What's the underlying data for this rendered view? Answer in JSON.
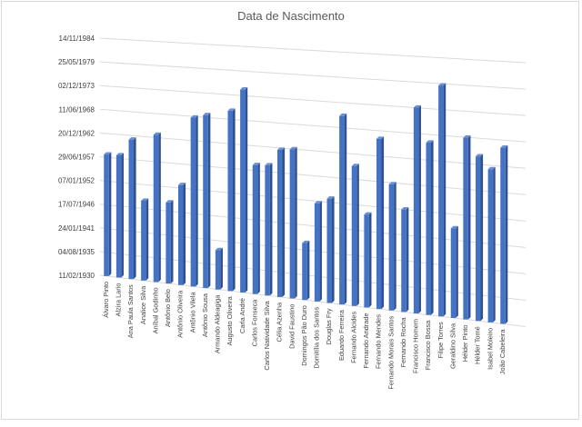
{
  "chart_data": {
    "type": "bar",
    "title": "Data de Nascimento",
    "xlabel": "",
    "ylabel": "",
    "y_tick_labels": [
      "11/02/1930",
      "04/08/1935",
      "24/01/1941",
      "17/07/1946",
      "07/01/1952",
      "29/06/1957",
      "20/12/1962",
      "11/06/1968",
      "02/12/1973",
      "25/05/1979",
      "14/11/1984"
    ],
    "ylim": [
      "11/02/1930",
      "14/11/1984"
    ],
    "grid": true,
    "legend": "none",
    "categories": [
      "Álvaro Pinto",
      "Alzira Lario",
      "Ana Paula Santos",
      "Analice Silva",
      "Aníbal Godinho",
      "Antônio Belo",
      "Antônio Oliveira",
      "Antônio Vilela",
      "Antônio Sousa",
      "Armando Aldeagiga",
      "Augusto Oliveira",
      "Carla André",
      "Carlos Fonseca",
      "Carlos Natividade Silva",
      "Célia Azenha",
      "David Faustino",
      "Domingos Pão Duro",
      "Domitília dos Santos",
      "Douglas Fry",
      "Eduardo Ferreira",
      "Fernando Alcides",
      "Fernando Andrade",
      "Fernando Mendes",
      "Fernando Morais Santos",
      "Fernando Rocha",
      "Francisco Homem",
      "Francisco Bossa",
      "Filipe Torres",
      "Geraldino Silva",
      "Hélder Pinto",
      "Hélder Tomé",
      "Isabel Moleiro",
      "João Cabeleira"
    ],
    "values": [
      "20/02/1958",
      "15/03/1958",
      "10/01/1962",
      "30/04/1948",
      "13/08/1963",
      "05/07/1948",
      "18/09/1952",
      "01/03/1968",
      "10/12/1968",
      "06/12/1938",
      "04/05/1970",
      "03/04/1975",
      "10/09/1958",
      "25/11/1958",
      "12/07/1962",
      "15/11/1962",
      "01/08/1942",
      "10/07/1951",
      "22/10/1952",
      "04/01/1971",
      "14/05/1960",
      "22/02/1950",
      "30/08/1966",
      "24/02/1957",
      "28/12/1951",
      "14/12/1973",
      "12/09/1966",
      "04/01/1979",
      "08/01/1949",
      "09/05/1968",
      "20/08/1964",
      "26/02/1962",
      "12/11/1966"
    ],
    "colors": {
      "bar": "#4472c4",
      "bar_dark": "#2f528f",
      "grid": "#d9d9d9",
      "text": "#404040",
      "title": "#595959"
    }
  }
}
